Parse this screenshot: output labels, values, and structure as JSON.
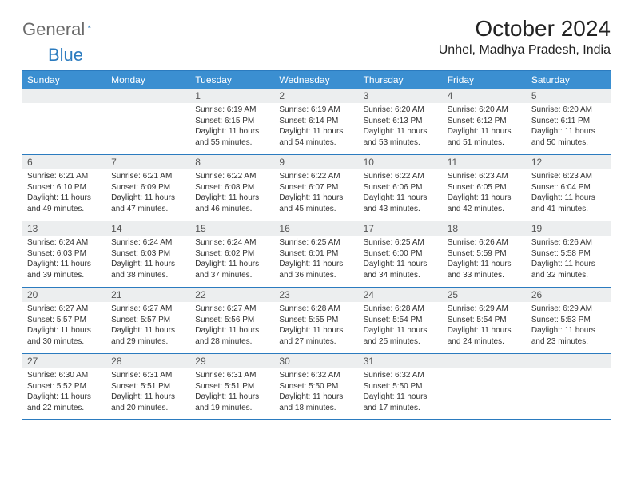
{
  "logo": {
    "text1": "General",
    "text2": "Blue"
  },
  "title": "October 2024",
  "location": "Unhel, Madhya Pradesh, India",
  "colors": {
    "header_bar": "#3b8fd1",
    "border": "#2b7bbf",
    "daynum_bg": "#eceeef",
    "logo_gray": "#6a6a6a",
    "logo_blue": "#2b7bbf"
  },
  "days_of_week": [
    "Sunday",
    "Monday",
    "Tuesday",
    "Wednesday",
    "Thursday",
    "Friday",
    "Saturday"
  ],
  "weeks": [
    [
      {
        "blank": true
      },
      {
        "blank": true
      },
      {
        "n": "1",
        "sr": "6:19 AM",
        "ss": "6:15 PM",
        "dl": "11 hours and 55 minutes."
      },
      {
        "n": "2",
        "sr": "6:19 AM",
        "ss": "6:14 PM",
        "dl": "11 hours and 54 minutes."
      },
      {
        "n": "3",
        "sr": "6:20 AM",
        "ss": "6:13 PM",
        "dl": "11 hours and 53 minutes."
      },
      {
        "n": "4",
        "sr": "6:20 AM",
        "ss": "6:12 PM",
        "dl": "11 hours and 51 minutes."
      },
      {
        "n": "5",
        "sr": "6:20 AM",
        "ss": "6:11 PM",
        "dl": "11 hours and 50 minutes."
      }
    ],
    [
      {
        "n": "6",
        "sr": "6:21 AM",
        "ss": "6:10 PM",
        "dl": "11 hours and 49 minutes."
      },
      {
        "n": "7",
        "sr": "6:21 AM",
        "ss": "6:09 PM",
        "dl": "11 hours and 47 minutes."
      },
      {
        "n": "8",
        "sr": "6:22 AM",
        "ss": "6:08 PM",
        "dl": "11 hours and 46 minutes."
      },
      {
        "n": "9",
        "sr": "6:22 AM",
        "ss": "6:07 PM",
        "dl": "11 hours and 45 minutes."
      },
      {
        "n": "10",
        "sr": "6:22 AM",
        "ss": "6:06 PM",
        "dl": "11 hours and 43 minutes."
      },
      {
        "n": "11",
        "sr": "6:23 AM",
        "ss": "6:05 PM",
        "dl": "11 hours and 42 minutes."
      },
      {
        "n": "12",
        "sr": "6:23 AM",
        "ss": "6:04 PM",
        "dl": "11 hours and 41 minutes."
      }
    ],
    [
      {
        "n": "13",
        "sr": "6:24 AM",
        "ss": "6:03 PM",
        "dl": "11 hours and 39 minutes."
      },
      {
        "n": "14",
        "sr": "6:24 AM",
        "ss": "6:03 PM",
        "dl": "11 hours and 38 minutes."
      },
      {
        "n": "15",
        "sr": "6:24 AM",
        "ss": "6:02 PM",
        "dl": "11 hours and 37 minutes."
      },
      {
        "n": "16",
        "sr": "6:25 AM",
        "ss": "6:01 PM",
        "dl": "11 hours and 36 minutes."
      },
      {
        "n": "17",
        "sr": "6:25 AM",
        "ss": "6:00 PM",
        "dl": "11 hours and 34 minutes."
      },
      {
        "n": "18",
        "sr": "6:26 AM",
        "ss": "5:59 PM",
        "dl": "11 hours and 33 minutes."
      },
      {
        "n": "19",
        "sr": "6:26 AM",
        "ss": "5:58 PM",
        "dl": "11 hours and 32 minutes."
      }
    ],
    [
      {
        "n": "20",
        "sr": "6:27 AM",
        "ss": "5:57 PM",
        "dl": "11 hours and 30 minutes."
      },
      {
        "n": "21",
        "sr": "6:27 AM",
        "ss": "5:57 PM",
        "dl": "11 hours and 29 minutes."
      },
      {
        "n": "22",
        "sr": "6:27 AM",
        "ss": "5:56 PM",
        "dl": "11 hours and 28 minutes."
      },
      {
        "n": "23",
        "sr": "6:28 AM",
        "ss": "5:55 PM",
        "dl": "11 hours and 27 minutes."
      },
      {
        "n": "24",
        "sr": "6:28 AM",
        "ss": "5:54 PM",
        "dl": "11 hours and 25 minutes."
      },
      {
        "n": "25",
        "sr": "6:29 AM",
        "ss": "5:54 PM",
        "dl": "11 hours and 24 minutes."
      },
      {
        "n": "26",
        "sr": "6:29 AM",
        "ss": "5:53 PM",
        "dl": "11 hours and 23 minutes."
      }
    ],
    [
      {
        "n": "27",
        "sr": "6:30 AM",
        "ss": "5:52 PM",
        "dl": "11 hours and 22 minutes."
      },
      {
        "n": "28",
        "sr": "6:31 AM",
        "ss": "5:51 PM",
        "dl": "11 hours and 20 minutes."
      },
      {
        "n": "29",
        "sr": "6:31 AM",
        "ss": "5:51 PM",
        "dl": "11 hours and 19 minutes."
      },
      {
        "n": "30",
        "sr": "6:32 AM",
        "ss": "5:50 PM",
        "dl": "11 hours and 18 minutes."
      },
      {
        "n": "31",
        "sr": "6:32 AM",
        "ss": "5:50 PM",
        "dl": "11 hours and 17 minutes."
      },
      {
        "blank": true
      },
      {
        "blank": true
      }
    ]
  ],
  "labels": {
    "sunrise": "Sunrise: ",
    "sunset": "Sunset: ",
    "daylight": "Daylight: "
  }
}
